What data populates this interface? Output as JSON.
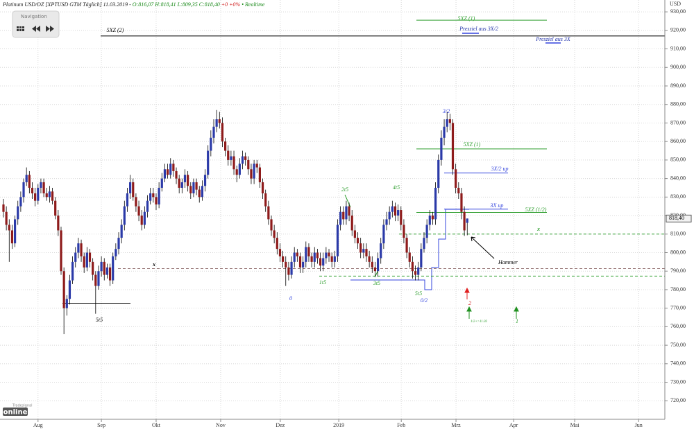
{
  "chart_data": {
    "type": "candlestick",
    "title": "Platinum USD/OZ [XPTUSD GTM Täglich] 11.03.2019 -",
    "quote": "O:816,07 H:818,41 L:809,35 C:818,40",
    "change": "+0 +0%",
    "status": "• Realtime",
    "y_label": "USD",
    "up_color": "#2b3aa8",
    "down_color": "#8e1b1b",
    "wick_color": "#000000",
    "open": [
      826,
      822,
      815,
      812,
      805,
      818,
      825,
      830,
      838,
      842,
      835,
      832,
      828,
      835,
      838,
      832,
      830,
      833,
      828,
      820,
      812,
      790,
      770,
      775,
      785,
      795,
      800,
      805,
      798,
      792,
      800,
      795,
      788,
      782,
      790,
      795,
      788,
      792,
      785,
      798,
      802,
      808,
      815,
      825,
      832,
      838,
      830,
      825,
      820,
      815,
      822,
      828,
      832,
      830,
      826,
      835,
      840,
      845,
      842,
      848,
      844,
      840,
      835,
      838,
      842,
      836,
      832,
      838,
      834,
      830,
      836,
      842,
      855,
      862,
      868,
      872,
      870,
      860,
      855,
      850,
      852,
      845,
      842,
      848,
      852,
      850,
      845,
      840,
      848,
      846,
      838,
      832,
      825,
      818,
      812,
      808,
      802,
      798,
      795,
      792,
      788,
      795,
      800,
      798,
      792,
      795,
      803,
      798,
      795,
      800,
      797,
      793,
      797,
      800,
      798,
      795,
      798,
      815,
      822,
      818,
      825,
      820,
      812,
      808,
      805,
      800,
      802,
      798,
      795,
      792,
      790,
      797,
      805,
      815,
      818,
      822,
      825,
      820,
      823,
      815,
      808,
      800,
      795,
      790,
      788,
      792,
      802,
      808,
      815,
      820,
      818,
      835,
      850,
      862,
      868,
      872,
      870,
      845,
      835,
      832,
      822,
      816.07
    ],
    "high": [
      829,
      825,
      818,
      815,
      820,
      828,
      833,
      840,
      846,
      844,
      838,
      835,
      837,
      840,
      840,
      835,
      836,
      835,
      830,
      823,
      814,
      792,
      777,
      788,
      798,
      803,
      808,
      807,
      800,
      803,
      802,
      797,
      790,
      793,
      798,
      797,
      794,
      794,
      800,
      805,
      811,
      818,
      828,
      835,
      842,
      840,
      832,
      828,
      823,
      825,
      831,
      835,
      835,
      832,
      838,
      843,
      848,
      848,
      851,
      850,
      846,
      842,
      840,
      845,
      844,
      838,
      840,
      840,
      836,
      839,
      845,
      858,
      866,
      872,
      877,
      876,
      873,
      862,
      858,
      855,
      855,
      847,
      851,
      855,
      854,
      852,
      848,
      850,
      850,
      848,
      840,
      834,
      828,
      820,
      815,
      811,
      805,
      801,
      798,
      795,
      798,
      803,
      802,
      800,
      798,
      806,
      805,
      800,
      803,
      802,
      800,
      800,
      803,
      802,
      800,
      801,
      818,
      825,
      825,
      828,
      827,
      823,
      815,
      811,
      808,
      805,
      805,
      801,
      798,
      795,
      800,
      808,
      818,
      822,
      825,
      828,
      827,
      826,
      825,
      818,
      810,
      803,
      798,
      793,
      795,
      805,
      811,
      818,
      823,
      822,
      838,
      853,
      866,
      872,
      876,
      875,
      872,
      848,
      838,
      835,
      825,
      818.41
    ],
    "low": [
      819,
      812,
      795,
      802,
      803,
      815,
      822,
      827,
      836,
      832,
      829,
      825,
      826,
      832,
      830,
      828,
      827,
      826,
      818,
      809,
      788,
      756,
      766,
      772,
      783,
      792,
      797,
      795,
      789,
      790,
      792,
      785,
      767,
      780,
      787,
      785,
      786,
      782,
      783,
      796,
      799,
      805,
      812,
      822,
      829,
      828,
      822,
      817,
      812,
      813,
      819,
      826,
      827,
      823,
      824,
      833,
      838,
      840,
      840,
      841,
      837,
      832,
      832,
      835,
      833,
      829,
      830,
      831,
      827,
      828,
      833,
      840,
      852,
      859,
      865,
      867,
      857,
      852,
      847,
      847,
      842,
      838,
      840,
      845,
      847,
      842,
      837,
      837,
      843,
      835,
      829,
      822,
      815,
      809,
      805,
      799,
      795,
      792,
      782,
      785,
      786,
      792,
      795,
      789,
      789,
      792,
      795,
      792,
      792,
      794,
      790,
      790,
      794,
      795,
      792,
      792,
      795,
      812,
      815,
      815,
      817,
      809,
      805,
      802,
      797,
      797,
      795,
      792,
      789,
      787,
      787,
      794,
      802,
      812,
      815,
      819,
      817,
      817,
      812,
      805,
      797,
      792,
      786,
      785,
      785,
      790,
      800,
      805,
      812,
      815,
      815,
      832,
      847,
      858,
      865,
      866,
      842,
      832,
      829,
      818,
      809,
      809.35
    ],
    "close": [
      822,
      815,
      812,
      805,
      818,
      825,
      830,
      838,
      842,
      835,
      832,
      828,
      835,
      838,
      832,
      830,
      833,
      828,
      820,
      812,
      790,
      770,
      775,
      785,
      795,
      800,
      805,
      798,
      792,
      800,
      795,
      788,
      782,
      790,
      795,
      788,
      792,
      785,
      798,
      802,
      808,
      815,
      825,
      832,
      838,
      830,
      825,
      820,
      815,
      822,
      828,
      832,
      830,
      826,
      835,
      840,
      845,
      842,
      848,
      844,
      840,
      835,
      838,
      842,
      836,
      832,
      838,
      834,
      830,
      836,
      842,
      855,
      862,
      868,
      872,
      870,
      860,
      855,
      850,
      852,
      845,
      842,
      848,
      852,
      850,
      845,
      840,
      848,
      846,
      838,
      832,
      825,
      818,
      812,
      808,
      802,
      798,
      795,
      792,
      788,
      795,
      800,
      798,
      792,
      795,
      803,
      798,
      795,
      800,
      797,
      793,
      797,
      800,
      798,
      795,
      798,
      815,
      822,
      818,
      825,
      820,
      812,
      808,
      805,
      800,
      802,
      798,
      795,
      792,
      790,
      797,
      805,
      815,
      818,
      822,
      825,
      820,
      823,
      815,
      808,
      800,
      795,
      790,
      788,
      792,
      802,
      808,
      815,
      820,
      818,
      835,
      850,
      862,
      868,
      872,
      870,
      845,
      835,
      832,
      822,
      812,
      818.4
    ],
    "last_price": {
      "value": 818.4,
      "label": "818,40"
    },
    "xlim": [
      -1.2,
      229.6
    ],
    "xticks": [
      {
        "value": 12.0,
        "label": "Aug"
      },
      {
        "value": 34.0,
        "label": "Sep"
      },
      {
        "value": 53.0,
        "label": "Okt"
      },
      {
        "value": 75.4,
        "label": "Nov"
      },
      {
        "value": 96.1,
        "label": "Dez"
      },
      {
        "value": 116.4,
        "label": "2019"
      },
      {
        "value": 138.1,
        "label": "Feb"
      },
      {
        "value": 157.1,
        "label": "Mrz"
      },
      {
        "value": 177.1,
        "label": "Apr"
      },
      {
        "value": 198.3,
        "label": "Mai"
      },
      {
        "value": 220.5,
        "label": "Jun"
      }
    ],
    "ylim": [
      710,
      936.4
    ],
    "yticks": [
      {
        "value": 720,
        "label": "720,00"
      },
      {
        "value": 730,
        "label": "730,00"
      },
      {
        "value": 740,
        "label": "740,00"
      },
      {
        "value": 750,
        "label": "750,00"
      },
      {
        "value": 760,
        "label": "760,00"
      },
      {
        "value": 770,
        "label": "770,00"
      },
      {
        "value": 780,
        "label": "780,00"
      },
      {
        "value": 790,
        "label": "790,00"
      },
      {
        "value": 800,
        "label": "800,00"
      },
      {
        "value": 810,
        "label": "810,00"
      },
      {
        "value": 820,
        "label": "820,00"
      },
      {
        "value": 830,
        "label": "830,00"
      },
      {
        "value": 840,
        "label": "840,00"
      },
      {
        "value": 850,
        "label": "850,00"
      },
      {
        "value": 860,
        "label": "860,00"
      },
      {
        "value": 870,
        "label": "870,00"
      },
      {
        "value": 880,
        "label": "880,00"
      },
      {
        "value": 890,
        "label": "890,00"
      },
      {
        "value": 900,
        "label": "900,00"
      },
      {
        "value": 910,
        "label": "910,00"
      },
      {
        "value": 920,
        "label": "920,00"
      },
      {
        "value": 930,
        "label": "930,00"
      }
    ],
    "grid": true,
    "levels": [
      {
        "label": "5XZ (2)",
        "value": 917,
        "color": "#000000"
      },
      {
        "label": "5XZ (1)",
        "value": 925.5,
        "color": "#2e9e2e"
      },
      {
        "label": "5XZ (1)",
        "value": 856,
        "color": "#2e9e2e"
      },
      {
        "label": "5XZ (1/2)",
        "value": 821.7,
        "color": "#2e9e2e"
      },
      {
        "label": "3X/2 up",
        "value": 843,
        "color": "#3344dd"
      },
      {
        "label": "3X up",
        "value": 823.5,
        "color": "#3344dd"
      },
      {
        "label": "x",
        "value": 810,
        "color": "#2e9e2e"
      },
      {
        "label": "x",
        "value": 791.4,
        "color": "#9a7a7a"
      },
      {
        "label": null,
        "value": 787.3,
        "color": "#2e9e2e"
      },
      {
        "label": "5t5",
        "value": 772.7,
        "color": "#000000"
      }
    ],
    "annotations": [
      "Presziel aus 3X/2",
      "Presziel aus 3X",
      "Hammer",
      "2t5",
      "4t5",
      "1t5",
      "3t5",
      "5t5",
      "0",
      "0/2",
      "1/2+>11.03",
      "1",
      "2",
      "3/2"
    ]
  },
  "navigation": {
    "title": "Navigation"
  },
  "logo": {
    "brand": "Tradesignal",
    "product": "online"
  }
}
